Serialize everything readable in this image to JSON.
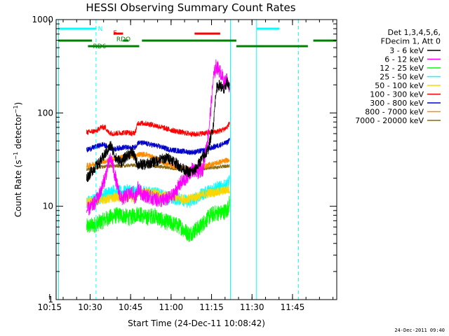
{
  "chart_data": {
    "type": "line",
    "title": "HESSI Observing Summary Count Rates",
    "xlabel": "Start Time (24-Dec-11 10:08:42)",
    "ylabel": "Count Rate (s⁻¹ detector⁻¹)",
    "yscale": "log",
    "xlim": [
      8.7,
      112.7
    ],
    "ylim": [
      1,
      1000
    ],
    "x_unit": "minutes after 10:08:42",
    "x_ticks": [
      {
        "x": 6.3,
        "label": "10:15"
      },
      {
        "x": 21.3,
        "label": "10:30"
      },
      {
        "x": 36.3,
        "label": "10:45"
      },
      {
        "x": 51.3,
        "label": "11:00"
      },
      {
        "x": 66.3,
        "label": "11:15"
      },
      {
        "x": 81.3,
        "label": "11:30"
      },
      {
        "x": 96.3,
        "label": "11:45"
      }
    ],
    "y_ticks": [
      {
        "y": 1,
        "label": "1"
      },
      {
        "y": 10,
        "label": "10"
      },
      {
        "y": 100,
        "label": "100"
      },
      {
        "y": 1000,
        "label": "1000"
      }
    ],
    "legend": {
      "placement": "right",
      "header": [
        "Det 1,3,4,5,6,",
        "FDecim 1, Att 0"
      ],
      "entries": [
        {
          "label": "3 - 6 keV",
          "color": "#000000"
        },
        {
          "label": "6 - 12 keV",
          "color": "#ff00ff"
        },
        {
          "label": "12 - 25 keV",
          "color": "#00ff00"
        },
        {
          "label": "25 - 50 keV",
          "color": "#00ffff"
        },
        {
          "label": "50 - 100 keV",
          "color": "#ffd700"
        },
        {
          "label": "100 - 300 keV",
          "color": "#ff0000"
        },
        {
          "label": "300 - 800 keV",
          "color": "#0000cd"
        },
        {
          "label": "800 - 7000 keV",
          "color": "#ff8c00"
        },
        {
          "label": "7000 - 20000 keV",
          "color": "#8b6914"
        }
      ]
    },
    "series": [
      {
        "name": "3 - 6 keV",
        "color": "#000000",
        "noise": 0.06,
        "points": [
          [
            20,
            20
          ],
          [
            22,
            24
          ],
          [
            25,
            30
          ],
          [
            29,
            45
          ],
          [
            31,
            32
          ],
          [
            33,
            30
          ],
          [
            35,
            35
          ],
          [
            37,
            38
          ],
          [
            39,
            28
          ],
          [
            42,
            28
          ],
          [
            45,
            30
          ],
          [
            48,
            32
          ],
          [
            50,
            33
          ],
          [
            52,
            31
          ],
          [
            55,
            26
          ],
          [
            58,
            23
          ],
          [
            60,
            24
          ],
          [
            62,
            30
          ],
          [
            65,
            40
          ],
          [
            67,
            75
          ],
          [
            68,
            180
          ],
          [
            69,
            200
          ],
          [
            70,
            190
          ],
          [
            71,
            170
          ],
          [
            72,
            220
          ],
          [
            73,
            180
          ]
        ]
      },
      {
        "name": "6 - 12 keV",
        "color": "#ff00ff",
        "noise": 0.08,
        "points": [
          [
            20,
            9
          ],
          [
            22,
            10
          ],
          [
            24,
            12
          ],
          [
            25,
            14
          ],
          [
            26,
            17
          ],
          [
            27,
            21
          ],
          [
            28,
            28
          ],
          [
            29,
            33
          ],
          [
            30,
            25
          ],
          [
            31,
            18
          ],
          [
            32,
            14
          ],
          [
            33,
            12
          ],
          [
            35,
            13
          ],
          [
            37,
            14
          ],
          [
            38,
            12
          ],
          [
            39,
            16
          ],
          [
            40,
            14
          ],
          [
            42,
            13
          ],
          [
            45,
            12
          ],
          [
            48,
            11.5
          ],
          [
            50,
            12
          ],
          [
            52,
            13
          ],
          [
            55,
            18
          ],
          [
            57,
            20
          ],
          [
            59,
            25
          ],
          [
            61,
            23
          ],
          [
            63,
            25
          ],
          [
            65,
            55
          ],
          [
            66,
            110
          ],
          [
            67,
            240
          ],
          [
            68,
            320
          ],
          [
            69,
            290
          ],
          [
            70,
            260
          ],
          [
            71,
            210
          ],
          [
            72,
            230
          ],
          [
            73,
            170
          ]
        ]
      },
      {
        "name": "12 - 25 keV",
        "color": "#00ff00",
        "noise": 0.09,
        "points": [
          [
            20,
            6
          ],
          [
            24,
            6.5
          ],
          [
            28,
            7.5
          ],
          [
            31,
            8
          ],
          [
            33,
            8
          ],
          [
            36,
            7.5
          ],
          [
            38,
            8
          ],
          [
            39,
            8.5
          ],
          [
            42,
            7.5
          ],
          [
            45,
            8
          ],
          [
            48,
            7
          ],
          [
            52,
            6.5
          ],
          [
            55,
            6
          ],
          [
            58,
            5
          ],
          [
            60,
            5.5
          ],
          [
            62,
            6
          ],
          [
            64,
            7
          ],
          [
            66,
            8
          ],
          [
            68,
            8.5
          ],
          [
            70,
            8.5
          ],
          [
            72,
            9
          ],
          [
            73,
            11
          ]
        ]
      },
      {
        "name": "25 - 50 keV",
        "color": "#00ffff",
        "noise": 0.07,
        "points": [
          [
            20,
            11
          ],
          [
            24,
            12
          ],
          [
            28,
            14
          ],
          [
            31,
            15
          ],
          [
            33,
            14
          ],
          [
            36,
            15
          ],
          [
            38,
            14
          ],
          [
            39,
            15
          ],
          [
            42,
            14
          ],
          [
            45,
            14
          ],
          [
            48,
            13
          ],
          [
            52,
            12
          ],
          [
            55,
            12
          ],
          [
            58,
            11
          ],
          [
            60,
            12
          ],
          [
            62,
            13
          ],
          [
            64,
            14
          ],
          [
            66,
            15
          ],
          [
            68,
            16
          ],
          [
            70,
            16
          ],
          [
            72,
            17
          ],
          [
            73,
            19
          ]
        ]
      },
      {
        "name": "50 - 100 keV",
        "color": "#ffd700",
        "noise": 0.05,
        "points": [
          [
            20,
            11
          ],
          [
            24,
            11.5
          ],
          [
            28,
            12
          ],
          [
            31,
            12.5
          ],
          [
            33,
            12
          ],
          [
            36,
            12.5
          ],
          [
            38,
            12
          ],
          [
            39,
            14
          ],
          [
            42,
            14
          ],
          [
            45,
            14
          ],
          [
            48,
            13
          ],
          [
            52,
            12.5
          ],
          [
            55,
            12
          ],
          [
            58,
            12
          ],
          [
            60,
            12.5
          ],
          [
            62,
            13
          ],
          [
            64,
            13.5
          ],
          [
            66,
            14
          ],
          [
            68,
            14
          ],
          [
            70,
            14.5
          ],
          [
            72,
            15
          ],
          [
            73,
            15
          ]
        ]
      },
      {
        "name": "100 - 300 keV",
        "color": "#ff0000",
        "noise": 0.03,
        "points": [
          [
            20,
            62
          ],
          [
            22,
            63
          ],
          [
            24,
            65
          ],
          [
            25,
            70
          ],
          [
            27,
            70
          ],
          [
            28,
            62
          ],
          [
            30,
            60
          ],
          [
            32,
            61
          ],
          [
            35,
            62
          ],
          [
            37,
            60
          ],
          [
            38,
            62
          ],
          [
            39,
            78
          ],
          [
            42,
            77
          ],
          [
            45,
            74
          ],
          [
            48,
            70
          ],
          [
            50,
            67
          ],
          [
            52,
            65
          ],
          [
            55,
            62
          ],
          [
            58,
            60
          ],
          [
            60,
            59
          ],
          [
            62,
            60
          ],
          [
            64,
            61
          ],
          [
            66,
            62
          ],
          [
            68,
            63
          ],
          [
            70,
            65
          ],
          [
            72,
            70
          ],
          [
            73,
            78
          ]
        ]
      },
      {
        "name": "300 - 800 keV",
        "color": "#0000cd",
        "noise": 0.03,
        "points": [
          [
            20,
            40
          ],
          [
            22,
            42
          ],
          [
            24,
            44
          ],
          [
            26,
            46
          ],
          [
            28,
            43
          ],
          [
            30,
            41
          ],
          [
            32,
            42
          ],
          [
            34,
            43
          ],
          [
            36,
            42
          ],
          [
            38,
            43
          ],
          [
            39,
            48
          ],
          [
            42,
            47
          ],
          [
            45,
            45
          ],
          [
            48,
            43
          ],
          [
            50,
            41
          ],
          [
            52,
            40
          ],
          [
            55,
            39
          ],
          [
            58,
            38
          ],
          [
            60,
            38
          ],
          [
            62,
            39
          ],
          [
            64,
            40
          ],
          [
            66,
            42
          ],
          [
            68,
            44
          ],
          [
            70,
            46
          ],
          [
            72,
            48
          ],
          [
            73,
            52
          ]
        ]
      },
      {
        "name": "800 - 7000 keV",
        "color": "#ff8c00",
        "noise": 0.03,
        "points": [
          [
            20,
            27
          ],
          [
            22,
            28
          ],
          [
            24,
            29
          ],
          [
            26,
            30
          ],
          [
            28,
            31
          ],
          [
            30,
            32
          ],
          [
            32,
            33
          ],
          [
            34,
            34
          ],
          [
            36,
            35
          ],
          [
            38,
            34
          ],
          [
            39,
            36
          ],
          [
            42,
            36
          ],
          [
            45,
            33
          ],
          [
            48,
            30
          ],
          [
            50,
            28
          ],
          [
            52,
            27
          ],
          [
            55,
            26
          ],
          [
            58,
            25
          ],
          [
            60,
            25
          ],
          [
            62,
            26
          ],
          [
            64,
            27
          ],
          [
            66,
            28
          ],
          [
            68,
            29
          ],
          [
            70,
            30
          ],
          [
            72,
            31
          ],
          [
            73,
            32
          ]
        ]
      },
      {
        "name": "7000 - 20000 keV",
        "color": "#8b6914",
        "noise": 0.02,
        "points": [
          [
            20,
            25
          ],
          [
            22,
            25.5
          ],
          [
            24,
            26
          ],
          [
            26,
            26.5
          ],
          [
            28,
            27
          ],
          [
            30,
            27
          ],
          [
            32,
            27
          ],
          [
            34,
            27
          ],
          [
            36,
            27.5
          ],
          [
            38,
            27.5
          ],
          [
            39,
            27.5
          ],
          [
            42,
            27.5
          ],
          [
            45,
            27
          ],
          [
            48,
            26.5
          ],
          [
            50,
            26
          ],
          [
            52,
            25.5
          ],
          [
            55,
            25
          ],
          [
            58,
            24.5
          ],
          [
            60,
            24.5
          ],
          [
            62,
            25
          ],
          [
            64,
            25.5
          ],
          [
            66,
            26
          ],
          [
            68,
            26
          ],
          [
            70,
            26.5
          ],
          [
            72,
            27
          ],
          [
            73,
            27
          ]
        ]
      }
    ],
    "flag_bars": [
      {
        "label": "N",
        "color": "#00ffff",
        "level": 1,
        "ranges": [
          [
            9.5,
            23.5
          ],
          [
            83,
            91.5
          ]
        ]
      },
      {
        "label": "F",
        "color": "#ff0000",
        "level": 2,
        "ranges": [
          [
            30,
            33.5
          ],
          [
            60,
            69.5
          ]
        ]
      },
      {
        "label": "RDO",
        "color": "#008000",
        "level": 3,
        "ranges": [
          [
            9.5,
            22
          ],
          [
            33.5,
            35.5
          ],
          [
            40.5,
            75.5
          ],
          [
            104,
            113
          ]
        ]
      },
      {
        "label": "RD6",
        "color": "#008000",
        "level": 4,
        "ranges": [
          [
            20.5,
            39.5
          ],
          [
            75.5,
            102
          ]
        ]
      }
    ],
    "vlines": [
      {
        "x": 9.6,
        "style": "solid",
        "color": "#00ffff"
      },
      {
        "x": 23.5,
        "style": "dashed",
        "color": "#00ffff"
      },
      {
        "x": 73.3,
        "style": "solid",
        "color": "#00ffff"
      },
      {
        "x": 83.0,
        "style": "solid",
        "color": "#00ffff"
      },
      {
        "x": 98.5,
        "style": "dashed",
        "color": "#00ffff"
      }
    ],
    "data_gaps": [
      [
        8.7,
        20
      ],
      [
        73.3,
        112.7
      ]
    ]
  },
  "timestamp": "24-Dec-2011 09:40"
}
